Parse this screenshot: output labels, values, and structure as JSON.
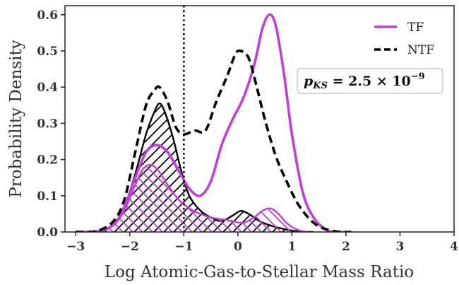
{
  "chart_data": {
    "type": "line",
    "xlabel": "Log Atomic-Gas-to-Stellar Mass Ratio",
    "ylabel": "Probability Density",
    "xlim": [
      -3.2,
      4.0
    ],
    "ylim": [
      0.0,
      0.625
    ],
    "x_ticks": [
      "−3",
      "−2",
      "−1",
      "0",
      "1",
      "2",
      "3",
      "4"
    ],
    "y_ticks": [
      "0.0",
      "0.1",
      "0.2",
      "0.3",
      "0.4",
      "0.5",
      "0.6"
    ],
    "vline_x": -1.0,
    "legend": {
      "position": "top-right",
      "entries": [
        {
          "label": "TF",
          "color": "#c13fd6",
          "style": "solid"
        },
        {
          "label": "NTF",
          "color": "#000000",
          "style": "dashed"
        }
      ]
    },
    "annotation": {
      "prefix": "p",
      "subscript": "KS",
      "text": " = 2.5 × 10",
      "exponent": "−9"
    },
    "series": [
      {
        "name": "TF",
        "color": "#c13fd6",
        "style": "solid",
        "x": [
          -3.0,
          -2.6,
          -2.3,
          -2.1,
          -1.9,
          -1.7,
          -1.5,
          -1.3,
          -1.1,
          -0.9,
          -0.7,
          -0.5,
          -0.3,
          -0.1,
          0.1,
          0.3,
          0.45,
          0.58,
          0.7,
          0.85,
          1.0,
          1.2,
          1.4,
          1.6,
          1.75,
          2.0
        ],
        "y": [
          0.0,
          0.002,
          0.02,
          0.07,
          0.15,
          0.22,
          0.24,
          0.22,
          0.17,
          0.12,
          0.1,
          0.14,
          0.24,
          0.31,
          0.37,
          0.46,
          0.56,
          0.6,
          0.57,
          0.44,
          0.27,
          0.11,
          0.04,
          0.01,
          0.0,
          0.0
        ]
      },
      {
        "name": "NTF",
        "color": "#000000",
        "style": "dashed",
        "x": [
          -3.0,
          -2.6,
          -2.3,
          -2.1,
          -1.9,
          -1.7,
          -1.55,
          -1.45,
          -1.3,
          -1.15,
          -1.0,
          -0.8,
          -0.6,
          -0.4,
          -0.2,
          -0.05,
          0.05,
          0.2,
          0.35,
          0.5,
          0.7,
          0.9,
          1.1,
          1.3,
          1.5,
          1.7,
          1.9,
          2.1
        ],
        "y": [
          0.0,
          0.003,
          0.03,
          0.09,
          0.22,
          0.35,
          0.39,
          0.4,
          0.36,
          0.29,
          0.27,
          0.28,
          0.28,
          0.36,
          0.43,
          0.49,
          0.5,
          0.48,
          0.4,
          0.31,
          0.21,
          0.14,
          0.08,
          0.04,
          0.015,
          0.005,
          0.0,
          0.0
        ]
      },
      {
        "name": "",
        "color": "#000000",
        "style": "solid",
        "hatch": "//",
        "x": [
          -3.0,
          -2.6,
          -2.3,
          -2.1,
          -1.9,
          -1.7,
          -1.55,
          -1.45,
          -1.35,
          -1.2,
          -1.05,
          -0.9,
          -0.7,
          -0.5,
          -0.3,
          -0.1,
          0.05,
          0.2,
          0.4,
          0.6,
          0.8,
          1.0,
          1.2,
          1.4
        ],
        "y": [
          0.0,
          0.003,
          0.02,
          0.07,
          0.16,
          0.27,
          0.33,
          0.355,
          0.33,
          0.26,
          0.17,
          0.1,
          0.06,
          0.04,
          0.03,
          0.045,
          0.058,
          0.05,
          0.03,
          0.018,
          0.01,
          0.004,
          0.001,
          0.0
        ]
      },
      {
        "name": "",
        "color": "#c13fd6",
        "style": "solid",
        "hatch": "\\\\",
        "x": [
          -3.0,
          -2.6,
          -2.3,
          -2.1,
          -1.9,
          -1.75,
          -1.6,
          -1.45,
          -1.3,
          -1.1,
          -0.9,
          -0.7,
          -0.5,
          -0.3,
          -0.1,
          0.1,
          0.3,
          0.45,
          0.6,
          0.75,
          0.9,
          1.1,
          1.3
        ],
        "y": [
          0.0,
          0.003,
          0.02,
          0.06,
          0.13,
          0.175,
          0.185,
          0.165,
          0.13,
          0.09,
          0.065,
          0.05,
          0.04,
          0.035,
          0.03,
          0.025,
          0.04,
          0.058,
          0.065,
          0.05,
          0.025,
          0.006,
          0.0
        ]
      }
    ]
  }
}
